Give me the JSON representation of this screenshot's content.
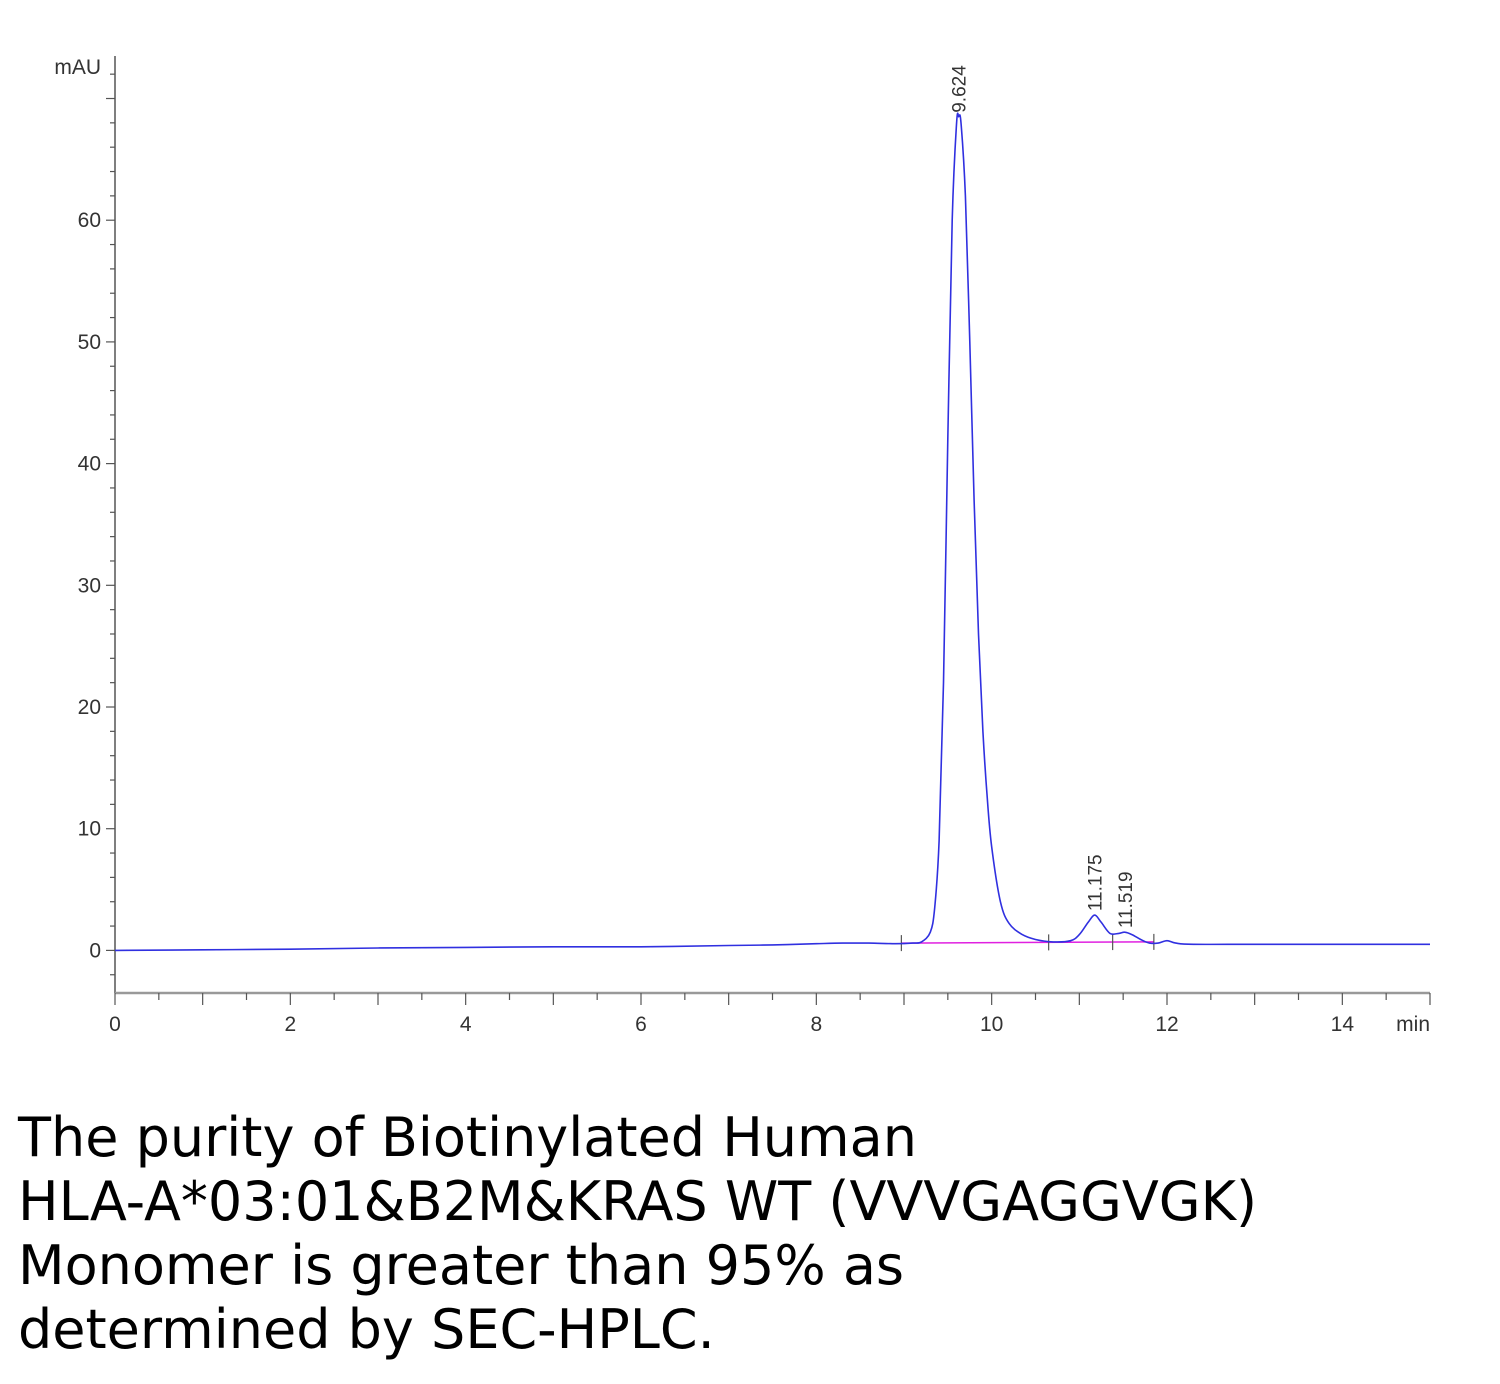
{
  "chart_data": {
    "type": "line",
    "title": "",
    "xlabel": "",
    "ylabel": "",
    "x_unit": "min",
    "y_unit": "mAU",
    "xlim": [
      0,
      15
    ],
    "ylim": [
      -3.5,
      73
    ],
    "x_ticks": [
      0,
      2,
      4,
      6,
      8,
      10,
      12,
      14
    ],
    "y_ticks": [
      0,
      10,
      20,
      30,
      40,
      50,
      60
    ],
    "grid": false,
    "series": [
      {
        "color": "#3030e0",
        "x": [
          0,
          1,
          2,
          3,
          4,
          5,
          6,
          7,
          7.5,
          8.0,
          8.3,
          8.6,
          8.9,
          9.1,
          9.2,
          9.3,
          9.35,
          9.4,
          9.45,
          9.5,
          9.55,
          9.6,
          9.624,
          9.65,
          9.7,
          9.75,
          9.8,
          9.85,
          9.9,
          9.95,
          10.0,
          10.1,
          10.2,
          10.35,
          10.5,
          10.7,
          10.9,
          11.0,
          11.1,
          11.175,
          11.25,
          11.35,
          11.45,
          11.519,
          11.6,
          11.7,
          11.8,
          11.9,
          12.0,
          12.1,
          12.3,
          13,
          14,
          15
        ],
        "y": [
          0.0,
          0.05,
          0.1,
          0.2,
          0.25,
          0.3,
          0.3,
          0.4,
          0.45,
          0.55,
          0.6,
          0.6,
          0.55,
          0.6,
          0.7,
          1.5,
          3.5,
          9.0,
          22.0,
          42.0,
          60.0,
          68.0,
          68.5,
          68.0,
          62.0,
          50.0,
          37.0,
          26.0,
          18.0,
          12.5,
          8.5,
          4.0,
          2.2,
          1.3,
          0.9,
          0.7,
          0.8,
          1.3,
          2.3,
          2.9,
          2.3,
          1.4,
          1.4,
          1.5,
          1.3,
          0.9,
          0.6,
          0.6,
          0.8,
          0.6,
          0.5,
          0.5,
          0.5,
          0.5
        ]
      }
    ],
    "baseline": {
      "color": "#e020e0",
      "x": [
        8.97,
        11.85
      ],
      "y": [
        0.6,
        0.7
      ]
    },
    "peak_labels": [
      {
        "x": 9.624,
        "y": 68.5,
        "label": "9.624"
      },
      {
        "x": 11.175,
        "y": 2.9,
        "label": "11.175"
      },
      {
        "x": 11.519,
        "y": 1.5,
        "label": "11.519"
      }
    ],
    "integration_marks": [
      8.97,
      10.65,
      11.38,
      11.85
    ]
  },
  "caption": {
    "lines": [
      "The purity of Biotinylated Human",
      "HLA-A*03:01&B2M&KRAS WT (VVVGAGGVGK)",
      "Monomer is greater than 95% as",
      "determined by SEC-HPLC."
    ]
  }
}
